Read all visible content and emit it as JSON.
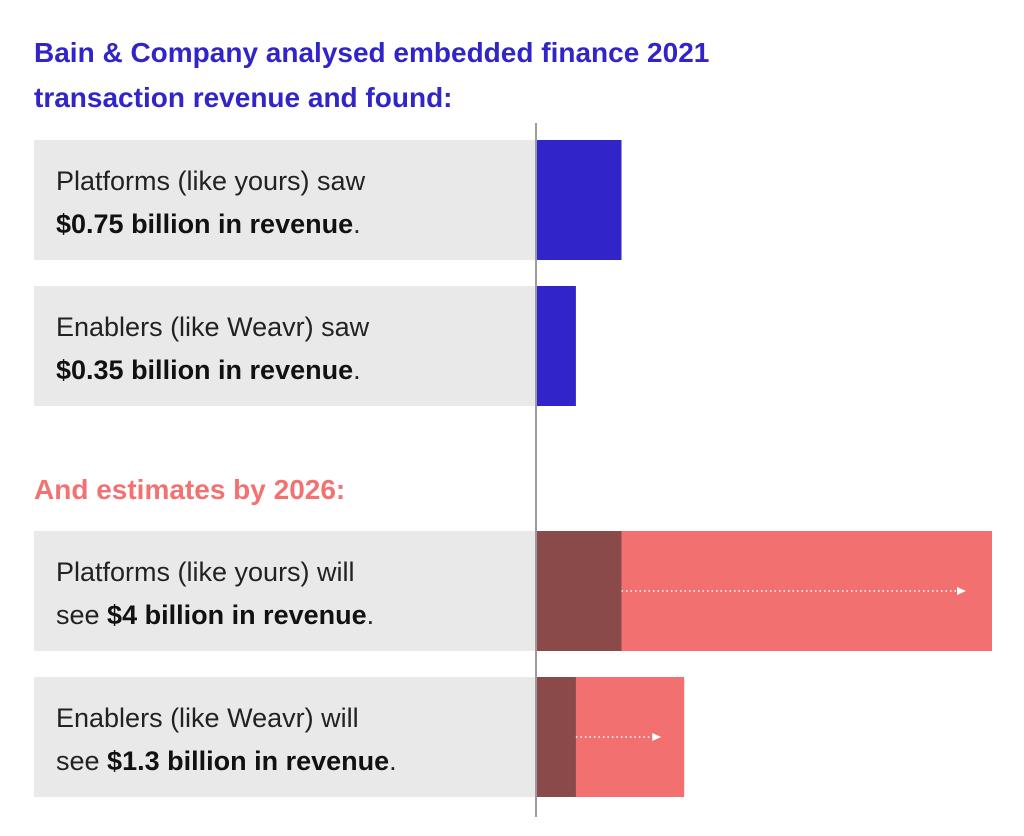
{
  "chart_data": {
    "type": "bar",
    "title": "Bain & Company analysed embedded finance 2021 transaction revenue and found:",
    "subtitle": "And estimates by 2026:",
    "unit": "billion USD",
    "colors": {
      "title": "#3124c8",
      "bars_2021": "#3124c8",
      "subtitle": "#f27272",
      "bars_2026": "#f27070",
      "bars_2021_overlay": "#8b4a4a",
      "label_box": "#e9e9e9"
    },
    "groups": [
      {
        "year": 2021,
        "items": [
          {
            "line1": "Platforms (like yours) saw",
            "pre": "",
            "bold": "$0.75 billion in revenue",
            "post": ".",
            "value": 0.75
          },
          {
            "line1": "Enablers (like Weavr) saw",
            "pre": "",
            "bold": "$0.35 billion in revenue",
            "post": ".",
            "value": 0.35
          }
        ]
      },
      {
        "year": 2026,
        "items": [
          {
            "line1": "Platforms (like yours) will",
            "pre": "see ",
            "bold": "$4 billion in revenue",
            "post": ".",
            "value": 4,
            "base": 0.75
          },
          {
            "line1": "Enablers (like Weavr) will",
            "pre": "see ",
            "bold": "$1.3 billion in revenue",
            "post": ".",
            "value": 1.3,
            "base": 0.35
          }
        ]
      }
    ]
  }
}
